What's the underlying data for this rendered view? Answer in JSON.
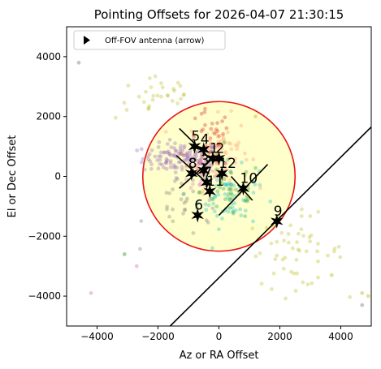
{
  "chart_data": {
    "type": "scatter",
    "title": "Pointing Offsets for 2026-04-07 21:30:15",
    "xlabel": "Az or RA Offset",
    "ylabel": "El or Dec Offset",
    "xlim": [
      -5000,
      5000
    ],
    "ylim": [
      -5000,
      5000
    ],
    "aspect": "equal",
    "grid": false,
    "legend": {
      "position": "top-left",
      "entries": [
        {
          "label": "Off-FOV antenna (arrow)",
          "marker": "triangle-right",
          "color": "#000000"
        }
      ]
    },
    "x_ticks": [
      {
        "value": -4000,
        "label": "−4000"
      },
      {
        "value": -2000,
        "label": "−2000"
      },
      {
        "value": 0,
        "label": "0"
      },
      {
        "value": 2000,
        "label": "2000"
      },
      {
        "value": 4000,
        "label": "4000"
      }
    ],
    "y_ticks": [
      {
        "value": -4000,
        "label": "−4000"
      },
      {
        "value": -2000,
        "label": "−2000"
      },
      {
        "value": 0,
        "label": "0"
      },
      {
        "value": 2000,
        "label": "2000"
      },
      {
        "value": 4000,
        "label": "4000"
      }
    ],
    "fov_circle": {
      "center": [
        0,
        0
      ],
      "radius": 2500,
      "fill": "#ffffcc",
      "edge": "#ee1111"
    },
    "antennas": [
      {
        "label": "1",
        "x": -200,
        "y": 600
      },
      {
        "label": "2",
        "x": 0,
        "y": 600
      },
      {
        "label": "3",
        "x": -500,
        "y": 200
      },
      {
        "label": "4",
        "x": -500,
        "y": 900
      },
      {
        "label": "5",
        "x": -800,
        "y": 1000
      },
      {
        "label": "6",
        "x": -700,
        "y": -1300
      },
      {
        "label": "7",
        "x": -400,
        "y": -200
      },
      {
        "label": "8",
        "x": -900,
        "y": 100
      },
      {
        "label": "9",
        "x": 1900,
        "y": -1500
      },
      {
        "label": "10",
        "x": 800,
        "y": -400
      },
      {
        "label": "11",
        "x": -300,
        "y": -500
      },
      {
        "label": "12",
        "x": 100,
        "y": 100
      }
    ],
    "antenna_lines": [
      {
        "from": [
          -1300,
          1600
        ],
        "to": [
          -300,
          600
        ]
      },
      {
        "from": [
          -1400,
          700
        ],
        "to": [
          -300,
          -300
        ]
      },
      {
        "from": [
          -1300,
          -400
        ],
        "to": [
          -200,
          600
        ]
      },
      {
        "from": [
          0,
          -1300
        ],
        "to": [
          1600,
          400
        ]
      },
      {
        "from": [
          400,
          0
        ],
        "to": [
          1100,
          -800
        ]
      }
    ],
    "off_fov_line": {
      "from": [
        -1600,
        -5000
      ],
      "to": [
        5000,
        1650
      ]
    },
    "point_clouds": [
      {
        "color": "#9467bd",
        "cx": -1200,
        "cy": 600,
        "sx": 650,
        "sy": 250,
        "n": 130
      },
      {
        "color": "#ff9f72",
        "cx": 0,
        "cy": 800,
        "sx": 500,
        "sy": 600,
        "n": 80
      },
      {
        "color": "#17becf",
        "cx": 300,
        "cy": -700,
        "sx": 500,
        "sy": 500,
        "n": 60
      },
      {
        "color": "#bcbd22",
        "cx": 2500,
        "cy": -2500,
        "sx": 800,
        "sy": 600,
        "n": 55
      },
      {
        "color": "#bcbd22",
        "cx": -2000,
        "cy": 2700,
        "sx": 700,
        "sy": 400,
        "n": 30
      },
      {
        "color": "#2ca02c",
        "cx": 400,
        "cy": -500,
        "sx": 500,
        "sy": 500,
        "n": 35
      },
      {
        "color": "#d62728",
        "cx": -300,
        "cy": 1200,
        "sx": 350,
        "sy": 500,
        "n": 30
      },
      {
        "color": "#7f7f7f",
        "cx": -1000,
        "cy": -900,
        "sx": 700,
        "sy": 600,
        "n": 35
      },
      {
        "color": "#e377c2",
        "cx": -600,
        "cy": 300,
        "sx": 300,
        "sy": 400,
        "n": 25
      }
    ],
    "outlier_points": [
      {
        "x": -4600,
        "y": 3800,
        "color": "#7f7f7f"
      },
      {
        "x": -4200,
        "y": -3900,
        "color": "#e377c2"
      },
      {
        "x": -3100,
        "y": -2600,
        "color": "#2ca02c"
      },
      {
        "x": -2700,
        "y": -3000,
        "color": "#e377c2"
      },
      {
        "x": 4700,
        "y": -4300,
        "color": "#7f7f7f"
      },
      {
        "x": 4900,
        "y": -4000,
        "color": "#bcbd22"
      },
      {
        "x": 4700,
        "y": -3900,
        "color": "#bcbd22"
      },
      {
        "x": 3700,
        "y": -3300,
        "color": "#bcbd22"
      },
      {
        "x": 1200,
        "y": 2000,
        "color": "#bcbd22"
      }
    ]
  }
}
